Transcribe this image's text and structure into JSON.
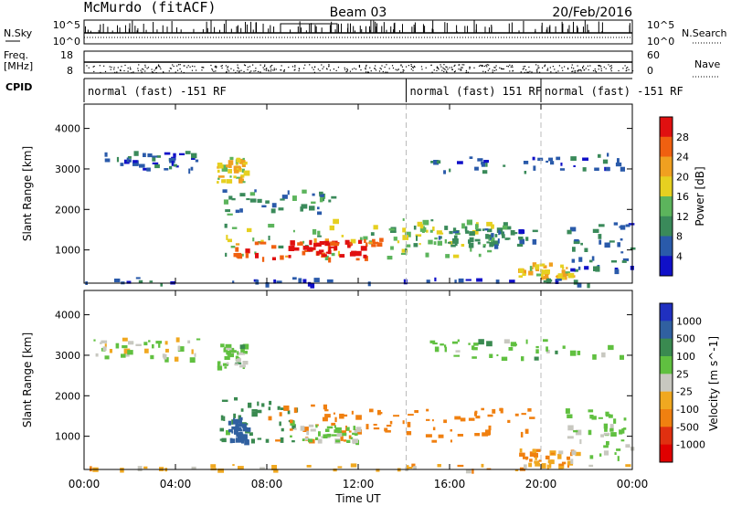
{
  "header": {
    "station": "McMurdo (fitACF)",
    "beam": "Beam 03",
    "date": "20/Feb/2016"
  },
  "meta_panel": {
    "nsky_label": "N.Sky",
    "nsearch_label": "N.Search",
    "noise_ticks_left": [
      "10^5",
      "10^0"
    ],
    "noise_ticks_right": [
      "10^5",
      "10^0"
    ],
    "freq_label_line1": "Freq.",
    "freq_label_line2": "[MHz]",
    "freq_ticks": [
      "18",
      "8"
    ],
    "nave_label": "Nave",
    "nave_ticks": [
      "60",
      "0"
    ],
    "cpid_label": "CPID",
    "cpid_segments": [
      {
        "label": "normal (fast) -151 RF",
        "start_hour": 0,
        "end_hour": 14.1
      },
      {
        "label": "normal (fast) 151 RF",
        "start_hour": 14.1,
        "end_hour": 20.0
      },
      {
        "label": "normal (fast) -151 RF",
        "start_hour": 20.0,
        "end_hour": 24
      }
    ]
  },
  "footer": {
    "xlabel": "Time UT"
  },
  "colors": {
    "power_scale": [
      "#1010c8",
      "#2a5aaa",
      "#3a8a5a",
      "#5cb45c",
      "#e6d020",
      "#f0a020",
      "#f06010",
      "#e01010"
    ],
    "velocity_scale": [
      "#2030c0",
      "#3060a0",
      "#3a8a50",
      "#60c040",
      "#c8c8c0",
      "#f0a820",
      "#f08010",
      "#e03010",
      "#e00000"
    ]
  },
  "chart_data": [
    {
      "type": "heatmap",
      "name": "power",
      "ylabel": "Slant Range [km]",
      "xlabel": "Time UT",
      "xlim": [
        0,
        24
      ],
      "ylim": [
        180,
        4600
      ],
      "x_ticks": [
        "00:00",
        "04:00",
        "08:00",
        "12:00",
        "16:00",
        "20:00",
        "00:00"
      ],
      "y_ticks": [
        1000,
        2000,
        3000,
        4000
      ],
      "colorbar_label": "Power [dB]",
      "colorbar_ticks": [
        "4",
        "8",
        "12",
        "16",
        "20",
        "24",
        "28"
      ],
      "colorbar_range": [
        0,
        30
      ],
      "regions": [
        {
          "t0": 0.9,
          "t1": 5.0,
          "r0": 2950,
          "r1": 3450,
          "value": 6
        },
        {
          "t0": 5.8,
          "t1": 7.0,
          "r0": 2700,
          "r1": 3300,
          "value": 17
        },
        {
          "t0": 6.0,
          "t1": 11.0,
          "r0": 1900,
          "r1": 2500,
          "value": 9
        },
        {
          "t0": 5.8,
          "t1": 18.0,
          "r0": 850,
          "r1": 1800,
          "value": 14
        },
        {
          "t0": 6.4,
          "t1": 13.2,
          "r0": 800,
          "r1": 1350,
          "value": 24
        },
        {
          "t0": 9.0,
          "t1": 12.0,
          "r0": 900,
          "r1": 1250,
          "value": 29
        },
        {
          "t0": 14.0,
          "t1": 18.5,
          "r0": 1100,
          "r1": 1700,
          "value": 13
        },
        {
          "t0": 15.5,
          "t1": 19.8,
          "r0": 1100,
          "r1": 1550,
          "value": 7
        },
        {
          "t0": 19.0,
          "t1": 21.5,
          "r0": 300,
          "r1": 700,
          "value": 18
        },
        {
          "t0": 21.0,
          "t1": 24.0,
          "r0": 500,
          "r1": 1700,
          "value": 7
        },
        {
          "t0": 15.0,
          "t1": 23.5,
          "r0": 2950,
          "r1": 3400,
          "value": 6
        },
        {
          "t0": 0,
          "t1": 24,
          "r0": 180,
          "r1": 330,
          "value": 5
        }
      ]
    },
    {
      "type": "heatmap",
      "name": "velocity",
      "ylabel": "Slant Range [km]",
      "xlabel": "Time UT",
      "xlim": [
        0,
        24
      ],
      "ylim": [
        180,
        4600
      ],
      "x_ticks": [
        "00:00",
        "04:00",
        "08:00",
        "12:00",
        "16:00",
        "20:00",
        "00:00"
      ],
      "y_ticks": [
        1000,
        2000,
        3000,
        4000
      ],
      "colorbar_label": "Velocity [m s^-1]",
      "colorbar_ticks": [
        "1000",
        "500",
        "100",
        "25",
        "-25",
        "-100",
        "-500",
        "-1000"
      ],
      "colorbar_range": [
        -1200,
        1200
      ],
      "regions": [
        {
          "t0": 0.3,
          "t1": 5.0,
          "r0": 2950,
          "r1": 3450,
          "value": 10
        },
        {
          "t0": 5.8,
          "t1": 7.0,
          "r0": 2700,
          "r1": 3300,
          "value": 60
        },
        {
          "t0": 5.8,
          "t1": 9.5,
          "r0": 850,
          "r1": 2000,
          "value": 150
        },
        {
          "t0": 6.3,
          "t1": 7.1,
          "r0": 900,
          "r1": 1500,
          "value": 700
        },
        {
          "t0": 8.0,
          "t1": 13.5,
          "r0": 850,
          "r1": 1800,
          "value": -300
        },
        {
          "t0": 9.0,
          "t1": 12.0,
          "r0": 900,
          "r1": 1300,
          "value": 40
        },
        {
          "t0": 13.5,
          "t1": 19.5,
          "r0": 900,
          "r1": 1750,
          "value": -250
        },
        {
          "t0": 19.0,
          "t1": 21.5,
          "r0": 300,
          "r1": 700,
          "value": -80
        },
        {
          "t0": 21.0,
          "t1": 24.0,
          "r0": 500,
          "r1": 1700,
          "value": 40
        },
        {
          "t0": 15.0,
          "t1": 23.5,
          "r0": 2950,
          "r1": 3400,
          "value": 60
        },
        {
          "t0": 0,
          "t1": 24,
          "r0": 180,
          "r1": 330,
          "value": -60
        }
      ]
    }
  ]
}
